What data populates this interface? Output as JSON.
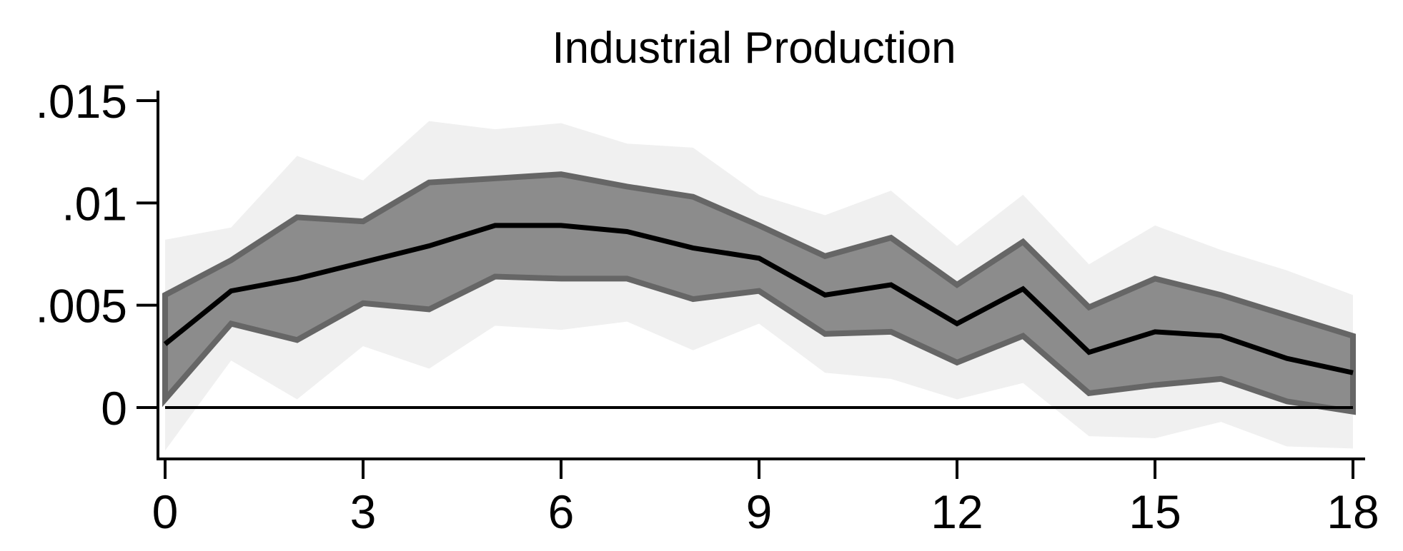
{
  "chart_data": {
    "type": "area",
    "title": "Industrial Production",
    "xlabel": "",
    "ylabel": "",
    "xlim": [
      0,
      18
    ],
    "ylim": [
      -0.0025,
      0.0155
    ],
    "x": [
      0,
      1,
      2,
      3,
      4,
      5,
      6,
      7,
      8,
      9,
      10,
      11,
      12,
      13,
      14,
      15,
      16,
      17,
      18
    ],
    "x_ticks": [
      0,
      3,
      6,
      9,
      12,
      15,
      18
    ],
    "x_tick_labels": [
      "0",
      "3",
      "6",
      "9",
      "12",
      "15",
      "18"
    ],
    "y_ticks": [
      0,
      0.005,
      0.01,
      0.015
    ],
    "y_tick_labels": [
      "0",
      ".005",
      ".01",
      ".015"
    ],
    "zero_line": true,
    "grid": false,
    "series": [
      {
        "role": "point_estimate",
        "values": [
          0.0031,
          0.0057,
          0.0063,
          0.0071,
          0.0079,
          0.0089,
          0.0089,
          0.0086,
          0.0078,
          0.0073,
          0.0055,
          0.006,
          0.0041,
          0.0058,
          0.0027,
          0.0037,
          0.0035,
          0.0024,
          0.0017
        ],
        "color": "#000000"
      },
      {
        "role": "inner_band",
        "lower": [
          0.0004,
          0.0041,
          0.0033,
          0.0051,
          0.0048,
          0.0064,
          0.0063,
          0.0063,
          0.0053,
          0.0057,
          0.0036,
          0.0037,
          0.0022,
          0.0035,
          0.0007,
          0.0011,
          0.0014,
          0.0003,
          -0.0002
        ],
        "upper": [
          0.0055,
          0.0072,
          0.0093,
          0.0091,
          0.011,
          0.0112,
          0.0114,
          0.0108,
          0.0103,
          0.0089,
          0.0074,
          0.0083,
          0.006,
          0.0081,
          0.0049,
          0.0063,
          0.0055,
          0.0045,
          0.0035
        ],
        "fill": "#8c8c8c",
        "edge": "#666666"
      },
      {
        "role": "outer_band",
        "lower": [
          -0.0021,
          0.0023,
          0.0004,
          0.003,
          0.0019,
          0.004,
          0.0038,
          0.0042,
          0.0028,
          0.0041,
          0.0017,
          0.0014,
          0.0004,
          0.0012,
          -0.0014,
          -0.0015,
          -0.0007,
          -0.0019,
          -0.002
        ],
        "upper": [
          0.0082,
          0.0088,
          0.0123,
          0.0111,
          0.014,
          0.0136,
          0.0139,
          0.0129,
          0.0127,
          0.0104,
          0.0094,
          0.0106,
          0.0079,
          0.0104,
          0.007,
          0.0089,
          0.0077,
          0.0067,
          0.0055
        ],
        "fill": "#f0f0f0"
      }
    ]
  }
}
